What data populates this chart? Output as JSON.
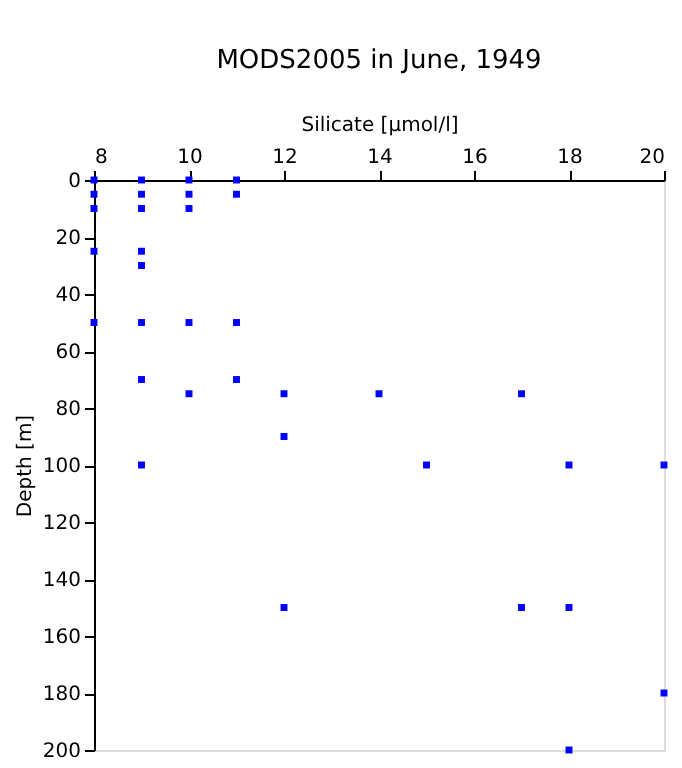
{
  "chart_data": {
    "type": "scatter",
    "title": "MODS2005 in June, 1949",
    "xlabel": "Silicate [µmol/l]",
    "ylabel": "Depth [m]",
    "series": [
      {
        "color": "#0000ff",
        "x": [
          8,
          9,
          10,
          11,
          8,
          9,
          10,
          11,
          8,
          9,
          10,
          8,
          9,
          9,
          8,
          9,
          10,
          11,
          9,
          11,
          10,
          12,
          14,
          17,
          12,
          9,
          15,
          18,
          20,
          12,
          17,
          18,
          20,
          18
        ],
        "values": [
          0,
          0,
          0,
          0,
          5,
          5,
          5,
          5,
          10,
          10,
          10,
          25,
          25,
          30,
          50,
          50,
          50,
          50,
          70,
          70,
          75,
          75,
          75,
          75,
          90,
          100,
          100,
          100,
          100,
          150,
          150,
          150,
          180,
          200
        ]
      }
    ],
    "xlim": [
      8,
      20
    ],
    "xticks": [
      8,
      10,
      12,
      14,
      16,
      18,
      20
    ],
    "ylim": [
      200,
      0
    ],
    "yticks": [
      0,
      20,
      40,
      60,
      80,
      100,
      120,
      140,
      160,
      180,
      200
    ],
    "marker": "square",
    "grid": false,
    "legend": false
  }
}
